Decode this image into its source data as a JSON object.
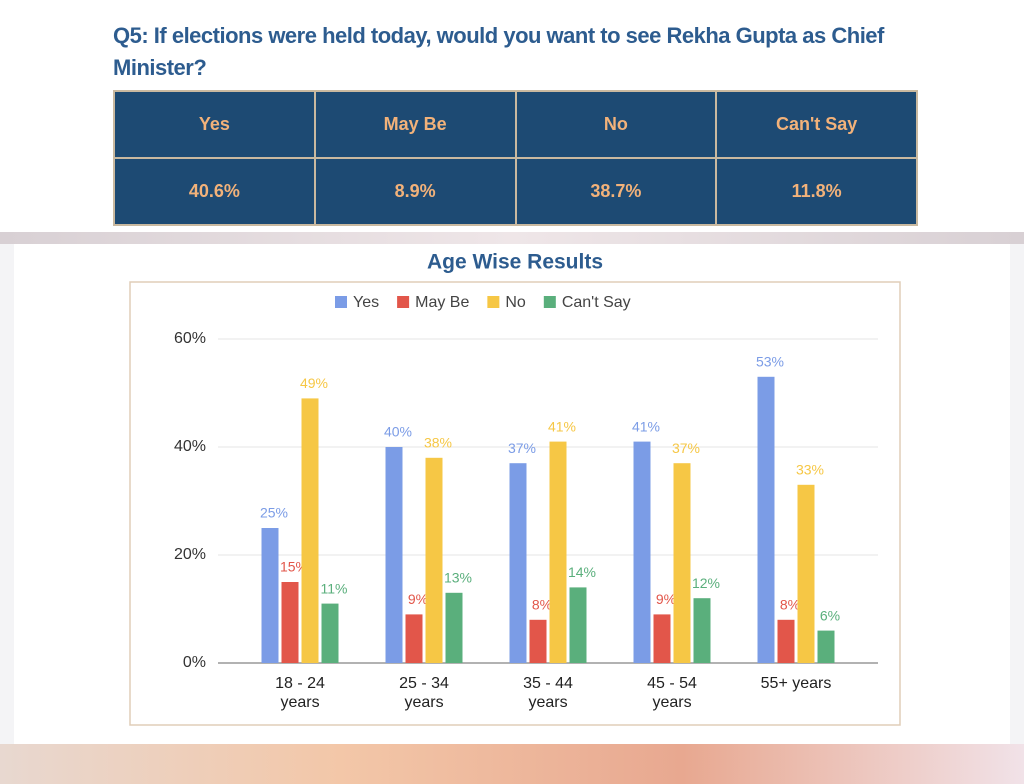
{
  "question": "Q5: If elections were held today, would you want to see Rekha Gupta as Chief Minister?",
  "table": {
    "headers": [
      "Yes",
      "May Be",
      "No",
      "Can't Say"
    ],
    "rows": [
      [
        "40.6%",
        "8.9%",
        "38.7%",
        "11.8%"
      ]
    ]
  },
  "chart_data": {
    "type": "bar",
    "title": "Age Wise Results",
    "categories": [
      "18 - 24 years",
      "25 - 34 years",
      "35 - 44 years",
      "45 - 54 years",
      "55+ years"
    ],
    "series": [
      {
        "name": "Yes",
        "color": "#7b9ce6",
        "values": [
          25,
          40,
          37,
          41,
          53
        ],
        "value_labels": [
          "25%",
          "40%",
          "37%",
          "41%",
          "53%"
        ]
      },
      {
        "name": "May Be",
        "color": "#e2564a",
        "values": [
          15,
          9,
          8,
          9,
          8
        ],
        "value_labels": [
          "15%",
          "9%",
          "8%",
          "9%",
          "8%"
        ]
      },
      {
        "name": "No",
        "color": "#f6c745",
        "values": [
          49,
          38,
          41,
          37,
          33
        ],
        "value_labels": [
          "49%",
          "38%",
          "41%",
          "37%",
          "33%"
        ]
      },
      {
        "name": "Can't Say",
        "color": "#5aaf7c",
        "values": [
          11,
          13,
          14,
          12,
          6
        ],
        "value_labels": [
          "11%",
          "13%",
          "14%",
          "12%",
          "6%"
        ]
      }
    ],
    "ylim": [
      0,
      60
    ],
    "yticks": [
      {
        "value": 0,
        "label": "0%"
      },
      {
        "value": 20,
        "label": "20%"
      },
      {
        "value": 40,
        "label": "40%"
      },
      {
        "value": 60,
        "label": "60%"
      }
    ],
    "grid": true,
    "legend": "top"
  }
}
